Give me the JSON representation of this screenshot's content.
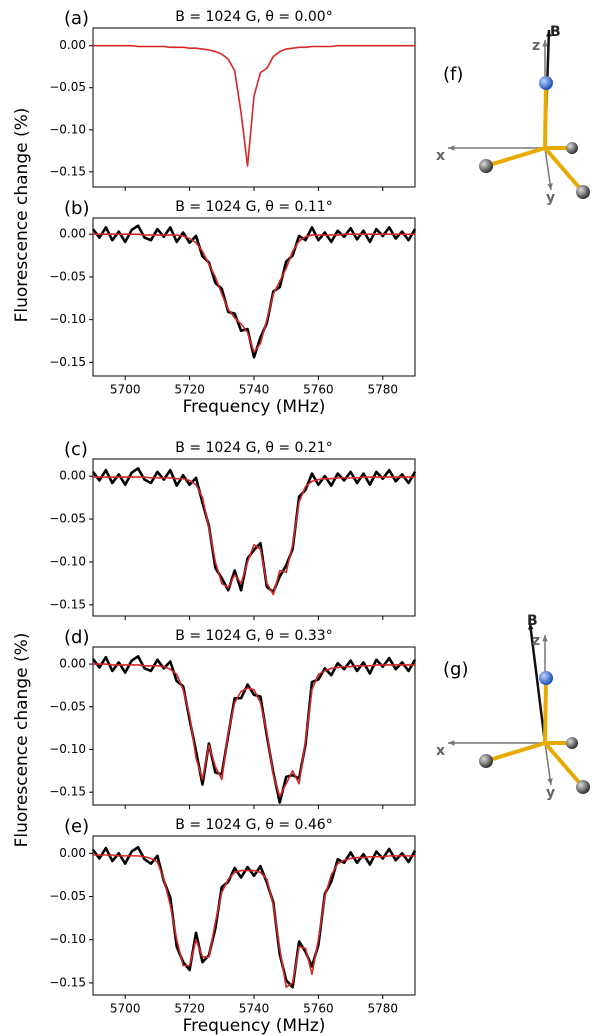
{
  "chart_data": [
    {
      "type": "line",
      "panel_label": "(a)",
      "title": "B = 1024 G, θ = 0.00°",
      "x": [
        5690,
        5692,
        5694,
        5696,
        5698,
        5700,
        5702,
        5704,
        5706,
        5708,
        5710,
        5712,
        5714,
        5716,
        5718,
        5720,
        5722,
        5724,
        5726,
        5728,
        5730,
        5732,
        5734,
        5736,
        5738,
        5740,
        5742,
        5744,
        5746,
        5748,
        5750,
        5752,
        5754,
        5756,
        5758,
        5760,
        5762,
        5764,
        5766,
        5768,
        5770,
        5772,
        5774,
        5776,
        5778,
        5780,
        5782,
        5784,
        5786,
        5788,
        5790
      ],
      "series": [
        {
          "color": "#d62728",
          "values": [
            0,
            0,
            0,
            0,
            0,
            0,
            0,
            -0.001,
            -0.001,
            -0.001,
            -0.001,
            -0.001,
            -0.002,
            -0.002,
            -0.002,
            -0.003,
            -0.003,
            -0.004,
            -0.005,
            -0.007,
            -0.01,
            -0.016,
            -0.03,
            -0.08,
            -0.143,
            -0.06,
            -0.032,
            -0.027,
            -0.013,
            -0.007,
            -0.004,
            -0.003,
            -0.002,
            -0.002,
            -0.001,
            -0.001,
            -0.001,
            -0.001,
            0,
            0,
            0,
            0,
            0,
            0,
            0,
            0,
            0,
            0,
            0,
            0,
            0
          ]
        }
      ],
      "xlim": [
        5690,
        5790
      ],
      "xticks": [
        5700,
        5720,
        5740,
        5760,
        5780
      ],
      "show_xtick_labels": false,
      "ylim": [
        -0.168,
        0.021
      ],
      "yticks": [
        {
          "value": 0,
          "label": "0.00"
        },
        {
          "value": -0.05,
          "label": "−0.05"
        },
        {
          "value": -0.1,
          "label": "−0.10"
        },
        {
          "value": -0.15,
          "label": "−0.15"
        }
      ]
    },
    {
      "type": "line",
      "panel_label": "(b)",
      "title": "B = 1024 G, θ = 0.11°",
      "xlabel": "Frequency (MHz)",
      "ylabel": "Fluorescence change (%)",
      "x": [
        5690,
        5692,
        5694,
        5696,
        5698,
        5700,
        5702,
        5704,
        5706,
        5708,
        5710,
        5712,
        5714,
        5716,
        5718,
        5720,
        5722,
        5724,
        5726,
        5728,
        5730,
        5732,
        5734,
        5736,
        5738,
        5740,
        5742,
        5744,
        5746,
        5748,
        5750,
        5752,
        5754,
        5756,
        5758,
        5760,
        5762,
        5764,
        5766,
        5768,
        5770,
        5772,
        5774,
        5776,
        5778,
        5780,
        5782,
        5784,
        5786,
        5788,
        5790
      ],
      "series": [
        {
          "color": "#000000",
          "values": [
            0.006,
            -0.004,
            0.008,
            -0.007,
            0.003,
            -0.009,
            0.005,
            0.01,
            -0.004,
            -0.007,
            0.006,
            -0.003,
            0.008,
            -0.009,
            0.002,
            -0.01,
            -0.002,
            -0.026,
            -0.033,
            -0.057,
            -0.064,
            -0.091,
            -0.093,
            -0.113,
            -0.111,
            -0.144,
            -0.121,
            -0.104,
            -0.067,
            -0.062,
            -0.032,
            -0.025,
            -0.002,
            -0.007,
            0.008,
            -0.007,
            0.002,
            -0.009,
            0.004,
            -0.003,
            0.007,
            -0.006,
            0.004,
            -0.009,
            0.006,
            -0.002,
            0.008,
            -0.005,
            0.003,
            -0.007,
            0.006
          ]
        },
        {
          "color": "#d62728",
          "values": [
            0,
            0,
            0,
            0,
            0,
            0,
            0,
            0,
            -0.001,
            -0.001,
            -0.001,
            -0.001,
            -0.001,
            -0.001,
            -0.002,
            -0.005,
            -0.01,
            -0.02,
            -0.035,
            -0.05,
            -0.07,
            -0.088,
            -0.098,
            -0.105,
            -0.115,
            -0.138,
            -0.128,
            -0.1,
            -0.07,
            -0.055,
            -0.04,
            -0.02,
            -0.008,
            -0.003,
            -0.001,
            -0.001,
            -0.001,
            -0.001,
            -0.001,
            0,
            0,
            0,
            0,
            0,
            0,
            0,
            0,
            0,
            0,
            0,
            0
          ]
        }
      ],
      "xlim": [
        5690,
        5790
      ],
      "xticks": [
        5700,
        5720,
        5740,
        5760,
        5780
      ],
      "show_xtick_labels": true,
      "ylim": [
        -0.166,
        0.019
      ],
      "yticks": [
        {
          "value": 0,
          "label": "0.00"
        },
        {
          "value": -0.05,
          "label": "−0.05"
        },
        {
          "value": -0.1,
          "label": "−0.10"
        },
        {
          "value": -0.15,
          "label": "−0.15"
        }
      ]
    },
    {
      "type": "line",
      "panel_label": "(c)",
      "title": "B = 1024 G, θ = 0.21°",
      "x": [
        5690,
        5692,
        5694,
        5696,
        5698,
        5700,
        5702,
        5704,
        5706,
        5708,
        5710,
        5712,
        5714,
        5716,
        5718,
        5720,
        5722,
        5724,
        5726,
        5728,
        5730,
        5732,
        5734,
        5736,
        5738,
        5740,
        5742,
        5744,
        5746,
        5748,
        5750,
        5752,
        5754,
        5756,
        5758,
        5760,
        5762,
        5764,
        5766,
        5768,
        5770,
        5772,
        5774,
        5776,
        5778,
        5780,
        5782,
        5784,
        5786,
        5788,
        5790
      ],
      "series": [
        {
          "color": "#000000",
          "values": [
            0.005,
            -0.005,
            0.007,
            -0.008,
            0.002,
            -0.01,
            0.004,
            0.009,
            -0.004,
            -0.008,
            0.005,
            -0.004,
            0.007,
            -0.011,
            0.001,
            -0.01,
            -0.002,
            -0.031,
            -0.058,
            -0.107,
            -0.119,
            -0.133,
            -0.11,
            -0.133,
            -0.096,
            -0.086,
            -0.078,
            -0.129,
            -0.135,
            -0.117,
            -0.104,
            -0.085,
            -0.024,
            -0.016,
            0.003,
            -0.01,
            0,
            -0.011,
            0.003,
            -0.005,
            0.005,
            -0.008,
            0.003,
            -0.01,
            0.005,
            -0.003,
            0.007,
            -0.006,
            0.002,
            -0.008,
            0.005
          ]
        },
        {
          "color": "#d62728",
          "values": [
            -0.001,
            -0.001,
            -0.001,
            -0.001,
            -0.001,
            -0.001,
            -0.001,
            -0.001,
            -0.001,
            -0.002,
            -0.002,
            -0.002,
            -0.002,
            -0.003,
            -0.003,
            -0.005,
            -0.01,
            -0.025,
            -0.06,
            -0.1,
            -0.125,
            -0.13,
            -0.115,
            -0.125,
            -0.1,
            -0.08,
            -0.085,
            -0.125,
            -0.138,
            -0.11,
            -0.112,
            -0.08,
            -0.03,
            -0.012,
            -0.006,
            -0.004,
            -0.003,
            -0.003,
            -0.002,
            -0.002,
            -0.002,
            -0.002,
            -0.001,
            -0.001,
            -0.001,
            -0.001,
            -0.001,
            -0.001,
            -0.001,
            -0.001,
            -0.001
          ]
        }
      ],
      "xlim": [
        5690,
        5790
      ],
      "xticks": [
        5700,
        5720,
        5740,
        5760,
        5780
      ],
      "show_xtick_labels": false,
      "ylim": [
        -0.163,
        0.02
      ],
      "yticks": [
        {
          "value": 0,
          "label": "0.00"
        },
        {
          "value": -0.05,
          "label": "−0.05"
        },
        {
          "value": -0.1,
          "label": "−0.10"
        },
        {
          "value": -0.15,
          "label": "−0.15"
        }
      ]
    },
    {
      "type": "line",
      "panel_label": "(d)",
      "title": "B = 1024 G, θ = 0.33°",
      "ylabel": "Fluorescence change (%)",
      "x": [
        5690,
        5692,
        5694,
        5696,
        5698,
        5700,
        5702,
        5704,
        5706,
        5708,
        5710,
        5712,
        5714,
        5716,
        5718,
        5720,
        5722,
        5724,
        5726,
        5728,
        5730,
        5732,
        5734,
        5736,
        5738,
        5740,
        5742,
        5744,
        5746,
        5748,
        5750,
        5752,
        5754,
        5756,
        5758,
        5760,
        5762,
        5764,
        5766,
        5768,
        5770,
        5772,
        5774,
        5776,
        5778,
        5780,
        5782,
        5784,
        5786,
        5788,
        5790
      ],
      "series": [
        {
          "color": "#000000",
          "values": [
            0.006,
            -0.004,
            0.008,
            -0.008,
            0.002,
            -0.01,
            0.004,
            0.009,
            -0.005,
            -0.008,
            0.005,
            -0.005,
            0.003,
            -0.02,
            -0.026,
            -0.065,
            -0.102,
            -0.141,
            -0.093,
            -0.127,
            -0.129,
            -0.083,
            -0.04,
            -0.04,
            -0.024,
            -0.036,
            -0.038,
            -0.084,
            -0.127,
            -0.162,
            -0.132,
            -0.13,
            -0.134,
            -0.094,
            -0.021,
            -0.018,
            -0.005,
            -0.013,
            0.001,
            -0.006,
            0.004,
            -0.008,
            0.002,
            -0.011,
            0.005,
            -0.003,
            0.007,
            -0.006,
            0.002,
            -0.008,
            0.005
          ]
        },
        {
          "color": "#d62728",
          "values": [
            0,
            0,
            0,
            -0.001,
            -0.001,
            -0.001,
            -0.001,
            -0.001,
            -0.002,
            -0.002,
            -0.002,
            -0.003,
            -0.006,
            -0.012,
            -0.03,
            -0.06,
            -0.11,
            -0.135,
            -0.095,
            -0.12,
            -0.135,
            -0.08,
            -0.045,
            -0.032,
            -0.028,
            -0.03,
            -0.045,
            -0.08,
            -0.13,
            -0.155,
            -0.14,
            -0.125,
            -0.14,
            -0.09,
            -0.03,
            -0.012,
            -0.008,
            -0.005,
            -0.004,
            -0.003,
            -0.003,
            -0.002,
            -0.002,
            -0.002,
            -0.001,
            -0.001,
            -0.001,
            -0.001,
            -0.001,
            -0.001,
            -0.001
          ]
        }
      ],
      "xlim": [
        5690,
        5790
      ],
      "xticks": [
        5700,
        5720,
        5740,
        5760,
        5780
      ],
      "show_xtick_labels": false,
      "ylim": [
        -0.165,
        0.02
      ],
      "yticks": [
        {
          "value": 0,
          "label": "0.00"
        },
        {
          "value": -0.05,
          "label": "−0.05"
        },
        {
          "value": -0.1,
          "label": "−0.10"
        },
        {
          "value": -0.15,
          "label": "−0.15"
        }
      ]
    },
    {
      "type": "line",
      "panel_label": "(e)",
      "title": "B = 1024 G, θ = 0.46°",
      "xlabel": "Frequency (MHz)",
      "x": [
        5690,
        5692,
        5694,
        5696,
        5698,
        5700,
        5702,
        5704,
        5706,
        5708,
        5710,
        5712,
        5714,
        5716,
        5718,
        5720,
        5722,
        5724,
        5726,
        5728,
        5730,
        5732,
        5734,
        5736,
        5738,
        5740,
        5742,
        5744,
        5746,
        5748,
        5750,
        5752,
        5754,
        5756,
        5758,
        5760,
        5762,
        5764,
        5766,
        5768,
        5770,
        5772,
        5774,
        5776,
        5778,
        5780,
        5782,
        5784,
        5786,
        5788,
        5790
      ],
      "series": [
        {
          "color": "#000000",
          "values": [
            0.004,
            -0.006,
            0.006,
            -0.009,
            0,
            -0.012,
            0.002,
            0.007,
            -0.007,
            -0.012,
            -0.003,
            -0.032,
            -0.051,
            -0.108,
            -0.126,
            -0.135,
            -0.092,
            -0.126,
            -0.118,
            -0.087,
            -0.039,
            -0.033,
            -0.017,
            -0.028,
            -0.016,
            -0.026,
            -0.015,
            -0.034,
            -0.057,
            -0.117,
            -0.147,
            -0.155,
            -0.102,
            -0.114,
            -0.131,
            -0.106,
            -0.047,
            -0.033,
            -0.007,
            -0.011,
            0.001,
            -0.011,
            -0.001,
            -0.013,
            0.002,
            -0.006,
            0.005,
            -0.008,
            0,
            -0.01,
            0.003
          ]
        },
        {
          "color": "#d62728",
          "values": [
            -0.002,
            -0.002,
            -0.002,
            -0.002,
            -0.003,
            -0.003,
            -0.003,
            -0.003,
            -0.004,
            -0.006,
            -0.01,
            -0.03,
            -0.06,
            -0.1,
            -0.13,
            -0.13,
            -0.1,
            -0.12,
            -0.12,
            -0.08,
            -0.045,
            -0.03,
            -0.022,
            -0.02,
            -0.02,
            -0.02,
            -0.022,
            -0.03,
            -0.06,
            -0.11,
            -0.155,
            -0.15,
            -0.108,
            -0.11,
            -0.14,
            -0.1,
            -0.05,
            -0.025,
            -0.012,
            -0.008,
            -0.006,
            -0.005,
            -0.005,
            -0.004,
            -0.004,
            -0.004,
            -0.003,
            -0.003,
            -0.003,
            -0.003,
            -0.003
          ]
        }
      ],
      "xlim": [
        5690,
        5790
      ],
      "xticks": [
        5700,
        5720,
        5740,
        5760,
        5780
      ],
      "show_xtick_labels": true,
      "ylim": [
        -0.164,
        0.02
      ],
      "yticks": [
        {
          "value": 0,
          "label": "0.00"
        },
        {
          "value": -0.05,
          "label": "−0.05"
        },
        {
          "value": -0.1,
          "label": "−0.10"
        },
        {
          "value": -0.15,
          "label": "−0.15"
        }
      ]
    }
  ],
  "diagrams": [
    {
      "label": "(f)",
      "x": "x",
      "y": "y",
      "z": "z",
      "field": "B"
    },
    {
      "label": "(g)",
      "x": "x",
      "y": "y",
      "z": "z",
      "field": "B"
    }
  ]
}
